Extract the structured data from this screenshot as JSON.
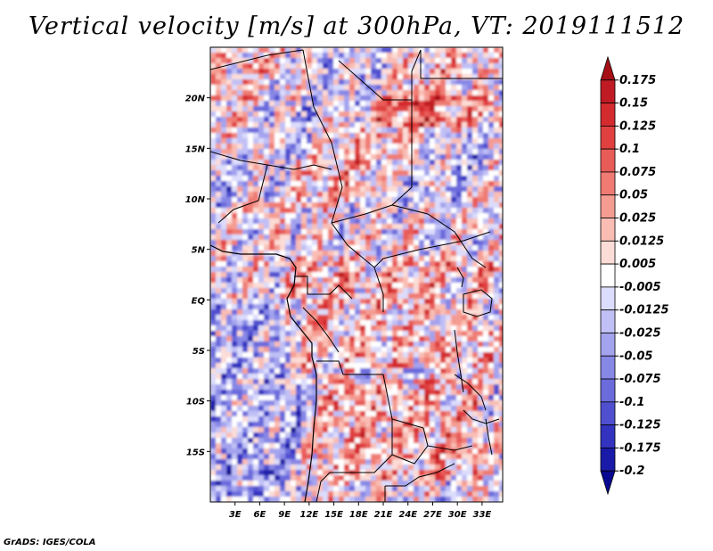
{
  "title": "Vertical velocity [m/s] at 300hPa, VT: 2019111512",
  "credit": "GrADS: IGES/COLA",
  "map": {
    "lon_range": [
      0,
      35.5
    ],
    "lat_range": [
      -20,
      25
    ],
    "lon_ticks": [
      "3E",
      "6E",
      "9E",
      "12E",
      "15E",
      "18E",
      "21E",
      "24E",
      "27E",
      "30E",
      "33E"
    ],
    "lat_ticks": [
      "20N",
      "15N",
      "10N",
      "5N",
      "EQ",
      "5S",
      "10S",
      "15S"
    ],
    "border_color": "#000000"
  },
  "colorbar": {
    "labels": [
      "0.175",
      "0.15",
      "0.125",
      "0.1",
      "0.075",
      "0.05",
      "0.025",
      "0.0125",
      "0.005",
      "-0.005",
      "-0.0125",
      "-0.025",
      "-0.05",
      "-0.075",
      "-0.1",
      "-0.125",
      "-0.175",
      "-0.2"
    ],
    "colors": [
      "#a50f15",
      "#c01a24",
      "#d42b2f",
      "#e04040",
      "#e85c58",
      "#ef7b73",
      "#f59c92",
      "#f9bdb4",
      "#fcdcd6",
      "#ffffff",
      "#dcdcfc",
      "#c0c0f6",
      "#a3a3ee",
      "#8787e6",
      "#6b6bdc",
      "#4f4fd0",
      "#3333c0",
      "#1a1aa8",
      "#080890"
    ]
  },
  "chart_data": {
    "type": "heatmap",
    "title": "Vertical velocity [m/s] at 300hPa, VT: 2019111512",
    "variable": "Vertical velocity",
    "units": "m/s",
    "level": "300hPa",
    "valid_time": "2019111512",
    "xlabel": "",
    "ylabel": "",
    "x_ticks": [
      "3E",
      "6E",
      "9E",
      "12E",
      "15E",
      "18E",
      "21E",
      "24E",
      "27E",
      "30E",
      "33E"
    ],
    "y_ticks": [
      "20N",
      "15N",
      "10N",
      "5N",
      "EQ",
      "5S",
      "10S",
      "15S"
    ],
    "color_levels": [
      -0.2,
      -0.175,
      -0.125,
      -0.1,
      -0.075,
      -0.05,
      -0.025,
      -0.0125,
      -0.005,
      0.005,
      0.0125,
      0.025,
      0.05,
      0.075,
      0.1,
      0.125,
      0.15,
      0.175
    ]
  }
}
